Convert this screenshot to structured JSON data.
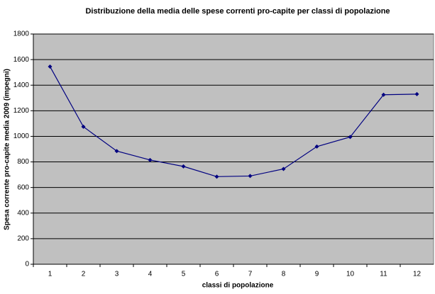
{
  "chart_data": {
    "type": "line",
    "title": "Distribuzione della media delle spese correnti pro-capite per classi di popolazione",
    "x_label": "classi di popolazione",
    "y_label": "Spesa corrente pro-capite media 2009 (impegni)",
    "categories": [
      "1",
      "2",
      "3",
      "4",
      "5",
      "6",
      "7",
      "8",
      "9",
      "10",
      "11",
      "12"
    ],
    "values": [
      1545,
      1075,
      885,
      815,
      765,
      685,
      690,
      745,
      920,
      995,
      1325,
      1330
    ],
    "color": "#000080",
    "background": "#c0c0c0",
    "ylim": [
      0,
      1800
    ],
    "yticks": [
      0,
      200,
      400,
      600,
      800,
      1000,
      1200,
      1400,
      1600,
      1800
    ],
    "grid": true
  }
}
